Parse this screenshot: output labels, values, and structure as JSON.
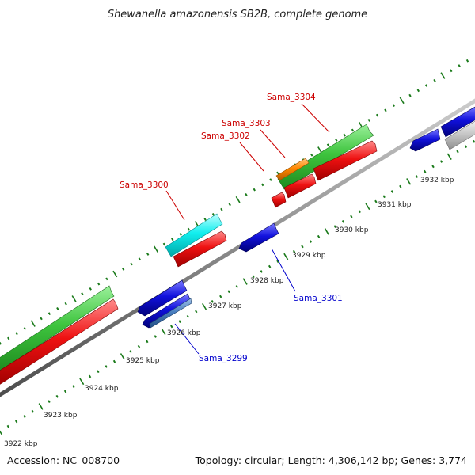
{
  "title": "Shewanella amazonensis SB2B, complete genome",
  "footer": {
    "accession": "Accession: NC_008700",
    "stats": "Topology: circular; Length: 4,306,142 bp; Genes: 3,774"
  },
  "ruler_labels": [
    "3922 kbp",
    "3923 kbp",
    "3924 kbp",
    "3925 kbp",
    "3926 kbp",
    "3927 kbp",
    "3928 kbp",
    "3929 kbp",
    "3930 kbp",
    "3931 kbp",
    "3932 kbp"
  ],
  "gene_labels": {
    "sama_3304": "Sama_3304",
    "sama_3303": "Sama_3303",
    "sama_3302": "Sama_3302",
    "sama_3300": "Sama_3300",
    "sama_3301": "Sama_3301",
    "sama_3299": "Sama_3299"
  },
  "colors": {
    "forward_label": "#cc0000",
    "reverse_label": "#0000cc",
    "ruler_ticks": "#1a7a1a",
    "backbone": "#888888",
    "green_cds": "#44cc44",
    "red_cds": "#ee1111",
    "blue_cds": "#1111dd",
    "cyan_cds": "#11eeee",
    "orange_cds": "#ff8800",
    "steel_cds": "#4a7fc0",
    "gray_cds": "#c8c8c8"
  }
}
